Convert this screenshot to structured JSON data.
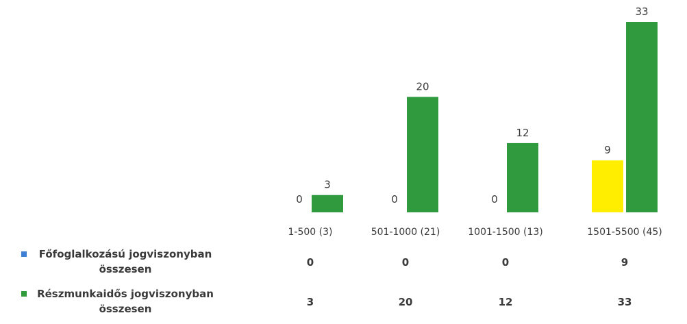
{
  "chart_data": {
    "type": "bar",
    "categories": [
      "1-500 (3)",
      "501-1000 (21)",
      "1001-1500 (13)",
      "1501-5500 (45)"
    ],
    "series": [
      {
        "name": "Főfoglalkozású jogviszonyban összesen",
        "name_lines": [
          "Főfoglalkozású jogviszonyban",
          "összesen"
        ],
        "values": [
          0,
          0,
          0,
          9
        ],
        "color": "#ffee00",
        "legend_color": "#3f7fd6"
      },
      {
        "name": "Részmunkaidős jogviszonyban összesen",
        "name_lines": [
          "Részmunkaidős jogviszonyban",
          "összesen"
        ],
        "values": [
          3,
          20,
          12,
          33
        ],
        "color": "#2f9a3e",
        "legend_color": "#2f9a3e"
      }
    ],
    "ylim": [
      0,
      33
    ],
    "grid": false,
    "legend": "bottom-left",
    "data_table": true
  }
}
